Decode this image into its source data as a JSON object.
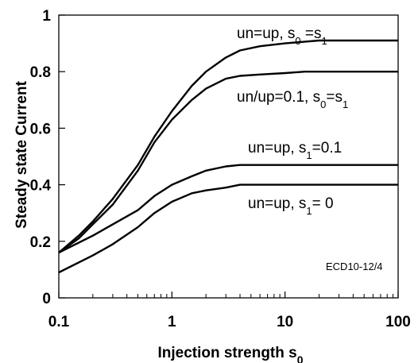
{
  "chart_data": {
    "type": "line",
    "xlabel": "Injection strength s",
    "xlabel_sub": "0",
    "ylabel": "Steady state Current",
    "x_scale": "log",
    "xlim": [
      0.1,
      100
    ],
    "ylim": [
      0,
      1
    ],
    "x_ticks": [
      "0.1",
      "1",
      "10",
      "100"
    ],
    "y_ticks": [
      "0",
      "0.2",
      "0.4",
      "0.6",
      "0.8",
      "1"
    ],
    "grid": false,
    "series": [
      {
        "x": [
          0.1,
          0.15,
          0.2,
          0.3,
          0.5,
          0.7,
          1,
          1.5,
          2,
          3,
          4,
          6,
          10,
          20,
          50,
          100
        ],
        "y": [
          0.16,
          0.22,
          0.27,
          0.35,
          0.47,
          0.57,
          0.66,
          0.75,
          0.8,
          0.85,
          0.875,
          0.89,
          0.9,
          0.91,
          0.91,
          0.91
        ]
      },
      {
        "x": [
          0.1,
          0.15,
          0.2,
          0.3,
          0.5,
          0.7,
          1,
          1.5,
          2,
          3,
          4,
          6,
          10,
          15,
          20,
          50,
          100
        ],
        "y": [
          0.16,
          0.21,
          0.26,
          0.33,
          0.45,
          0.55,
          0.63,
          0.7,
          0.74,
          0.775,
          0.785,
          0.79,
          0.795,
          0.8,
          0.8,
          0.8,
          0.8
        ]
      },
      {
        "x": [
          0.1,
          0.2,
          0.3,
          0.5,
          0.7,
          1,
          1.5,
          2,
          3,
          4,
          6,
          10,
          100
        ],
        "y": [
          0.16,
          0.22,
          0.26,
          0.31,
          0.36,
          0.4,
          0.43,
          0.45,
          0.465,
          0.47,
          0.47,
          0.47,
          0.47
        ]
      },
      {
        "x": [
          0.1,
          0.2,
          0.3,
          0.5,
          0.7,
          1,
          1.5,
          2,
          3,
          4,
          6,
          10,
          100
        ],
        "y": [
          0.09,
          0.15,
          0.19,
          0.25,
          0.3,
          0.34,
          0.37,
          0.38,
          0.39,
          0.4,
          0.4,
          0.4,
          0.4
        ]
      }
    ],
    "annotations": [
      {
        "text": "un=up, s",
        "sub": "0",
        "rest": " =s",
        "sub2": "1"
      },
      {
        "text": "un/up=0.1, s",
        "sub": "0",
        "rest": "=s",
        "sub2": "1"
      },
      {
        "text": "un=up,  s",
        "sub": "1",
        "rest": "=0.1"
      },
      {
        "text": "un=up,  s",
        "sub": "1",
        "rest": "= 0"
      }
    ],
    "note": "ECD10-12/4"
  }
}
